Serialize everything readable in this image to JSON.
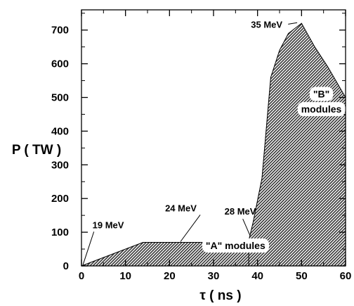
{
  "chart_data": {
    "type": "area",
    "xlabel": "τ ( ns )",
    "ylabel": "P ( TW )",
    "xlim": [
      0,
      60
    ],
    "ylim": [
      0,
      760
    ],
    "xticks": [
      0,
      10,
      20,
      30,
      40,
      50,
      60
    ],
    "yticks": [
      0,
      100,
      200,
      300,
      400,
      500,
      600,
      700
    ],
    "series": [
      {
        "x": [
          0,
          14,
          60
        ],
        "y": [
          0,
          70,
          70
        ]
      },
      {
        "x": [
          38,
          39,
          41,
          43,
          45,
          47,
          50,
          53,
          56,
          60
        ],
        "y": [
          75,
          130,
          260,
          560,
          640,
          690,
          720,
          650,
          590,
          500
        ]
      }
    ],
    "region_labels": [
      {
        "text": "\"A\" modules",
        "x": 35,
        "y": 50
      },
      {
        "text": "\"B\"",
        "x": 54.5,
        "y": 500
      },
      {
        "text": "modules",
        "x": 54.5,
        "y": 455
      }
    ],
    "annotations": [
      {
        "text": "19 MeV",
        "x": 2.5,
        "y": 112,
        "ax": 0.3,
        "ay": 2
      },
      {
        "text": "24 MeV",
        "x": 19,
        "y": 162,
        "ax": 22.5,
        "ay": 72
      },
      {
        "text": "28 MeV",
        "x": 32.5,
        "y": 152,
        "ax": 38.3,
        "ay": 90
      },
      {
        "text": "35 MeV",
        "x": 38.5,
        "y": 707,
        "ax": 49,
        "ay": 722
      }
    ],
    "grid": false
  }
}
